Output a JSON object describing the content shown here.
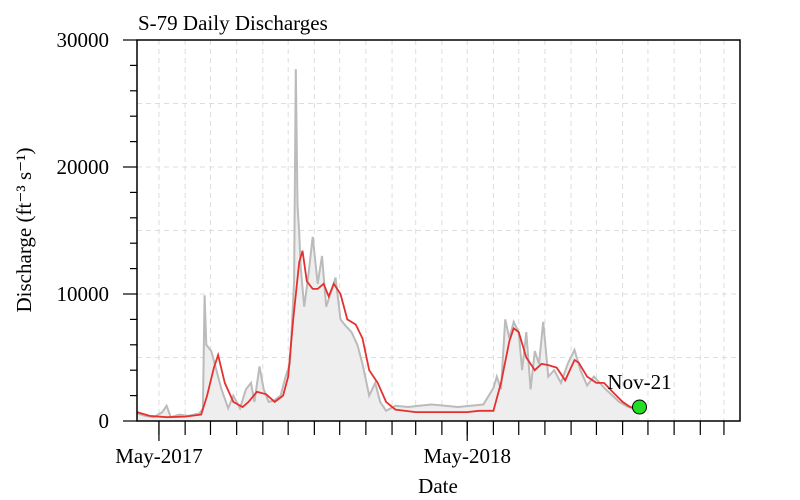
{
  "chart_data": {
    "type": "area",
    "title": "S-79 Daily Discharges",
    "xlabel": "Date",
    "ylabel": "Discharge (ft⁻³ s⁻¹)",
    "x_tick_labels": [
      {
        "date": "2017-05-01",
        "label": "May-2017"
      },
      {
        "date": "2018-05-01",
        "label": "May-2018"
      }
    ],
    "xlim": [
      "2017-04-05",
      "2019-03-20"
    ],
    "ylim": [
      0,
      30000
    ],
    "yticks": [
      0,
      10000,
      20000,
      30000
    ],
    "grid": true,
    "annotation": {
      "date": "2018-11-21",
      "value": 1100,
      "label": "Nov-21",
      "color": "#22dd22"
    },
    "series": [
      {
        "style": "gray area",
        "color": "#bbbbbb",
        "fill": "#eeeeee",
        "points": [
          [
            "2017-04-05",
            600
          ],
          [
            "2017-04-15",
            400
          ],
          [
            "2017-04-25",
            300
          ],
          [
            "2017-05-05",
            700
          ],
          [
            "2017-05-10",
            1200
          ],
          [
            "2017-05-15",
            300
          ],
          [
            "2017-05-25",
            500
          ],
          [
            "2017-06-05",
            400
          ],
          [
            "2017-06-18",
            600
          ],
          [
            "2017-06-22",
            1000
          ],
          [
            "2017-06-24",
            9900
          ],
          [
            "2017-06-26",
            6000
          ],
          [
            "2017-07-02",
            5500
          ],
          [
            "2017-07-08",
            4000
          ],
          [
            "2017-07-14",
            2500
          ],
          [
            "2017-07-22",
            1000
          ],
          [
            "2017-07-28",
            2000
          ],
          [
            "2017-08-05",
            1000
          ],
          [
            "2017-08-12",
            2500
          ],
          [
            "2017-08-18",
            3000
          ],
          [
            "2017-08-22",
            1500
          ],
          [
            "2017-08-28",
            4300
          ],
          [
            "2017-09-02",
            2500
          ],
          [
            "2017-09-08",
            1500
          ],
          [
            "2017-09-14",
            1600
          ],
          [
            "2017-09-22",
            2000
          ],
          [
            "2017-09-28",
            3500
          ],
          [
            "2017-10-03",
            4500
          ],
          [
            "2017-10-08",
            11000
          ],
          [
            "2017-10-10",
            27700
          ],
          [
            "2017-10-12",
            17000
          ],
          [
            "2017-10-14",
            14800
          ],
          [
            "2017-10-16",
            12000
          ],
          [
            "2017-10-20",
            9000
          ],
          [
            "2017-10-25",
            11500
          ],
          [
            "2017-10-30",
            14500
          ],
          [
            "2017-11-05",
            10800
          ],
          [
            "2017-11-10",
            13000
          ],
          [
            "2017-11-15",
            9000
          ],
          [
            "2017-11-20",
            10000
          ],
          [
            "2017-11-26",
            11300
          ],
          [
            "2017-12-02",
            8000
          ],
          [
            "2017-12-08",
            7500
          ],
          [
            "2017-12-15",
            7000
          ],
          [
            "2017-12-22",
            6000
          ],
          [
            "2017-12-28",
            4500
          ],
          [
            "2018-01-05",
            2000
          ],
          [
            "2018-01-12",
            3000
          ],
          [
            "2018-01-18",
            1500
          ],
          [
            "2018-01-25",
            800
          ],
          [
            "2018-02-05",
            1200
          ],
          [
            "2018-02-20",
            1100
          ],
          [
            "2018-03-05",
            1200
          ],
          [
            "2018-03-20",
            1300
          ],
          [
            "2018-04-05",
            1200
          ],
          [
            "2018-04-20",
            1100
          ],
          [
            "2018-05-05",
            1200
          ],
          [
            "2018-05-20",
            1300
          ],
          [
            "2018-06-01",
            2600
          ],
          [
            "2018-06-05",
            3500
          ],
          [
            "2018-06-10",
            2500
          ],
          [
            "2018-06-15",
            8000
          ],
          [
            "2018-06-20",
            6500
          ],
          [
            "2018-06-25",
            7800
          ],
          [
            "2018-07-01",
            7000
          ],
          [
            "2018-07-05",
            4000
          ],
          [
            "2018-07-10",
            7000
          ],
          [
            "2018-07-15",
            2500
          ],
          [
            "2018-07-20",
            5500
          ],
          [
            "2018-07-25",
            4500
          ],
          [
            "2018-07-30",
            7800
          ],
          [
            "2018-08-05",
            3500
          ],
          [
            "2018-08-12",
            4000
          ],
          [
            "2018-08-20",
            3000
          ],
          [
            "2018-08-28",
            4500
          ],
          [
            "2018-09-05",
            5600
          ],
          [
            "2018-09-12",
            4000
          ],
          [
            "2018-09-20",
            2800
          ],
          [
            "2018-09-28",
            3500
          ],
          [
            "2018-10-05",
            3000
          ],
          [
            "2018-10-12",
            2500
          ],
          [
            "2018-10-20",
            2000
          ],
          [
            "2018-10-28",
            1500
          ],
          [
            "2018-11-05",
            1200
          ],
          [
            "2018-11-12",
            1000
          ],
          [
            "2018-11-21",
            1100
          ]
        ]
      },
      {
        "style": "red line",
        "color": "#e53030",
        "points": [
          [
            "2017-04-05",
            700
          ],
          [
            "2017-04-20",
            400
          ],
          [
            "2017-05-10",
            300
          ],
          [
            "2017-06-01",
            350
          ],
          [
            "2017-06-20",
            500
          ],
          [
            "2017-06-27",
            2000
          ],
          [
            "2017-07-05",
            4200
          ],
          [
            "2017-07-10",
            5200
          ],
          [
            "2017-07-18",
            3000
          ],
          [
            "2017-07-28",
            1500
          ],
          [
            "2017-08-08",
            1100
          ],
          [
            "2017-08-15",
            1500
          ],
          [
            "2017-08-25",
            2300
          ],
          [
            "2017-09-05",
            2100
          ],
          [
            "2017-09-15",
            1500
          ],
          [
            "2017-09-25",
            2000
          ],
          [
            "2017-10-01",
            3500
          ],
          [
            "2017-10-07",
            8000
          ],
          [
            "2017-10-14",
            12500
          ],
          [
            "2017-10-18",
            13400
          ],
          [
            "2017-10-23",
            11000
          ],
          [
            "2017-10-30",
            10400
          ],
          [
            "2017-11-05",
            10400
          ],
          [
            "2017-11-12",
            10800
          ],
          [
            "2017-11-18",
            9800
          ],
          [
            "2017-11-24",
            10800
          ],
          [
            "2017-12-02",
            10000
          ],
          [
            "2017-12-10",
            8000
          ],
          [
            "2017-12-20",
            7600
          ],
          [
            "2017-12-28",
            6500
          ],
          [
            "2018-01-05",
            4000
          ],
          [
            "2018-01-15",
            3000
          ],
          [
            "2018-01-25",
            1500
          ],
          [
            "2018-02-05",
            900
          ],
          [
            "2018-03-01",
            700
          ],
          [
            "2018-04-01",
            700
          ],
          [
            "2018-05-01",
            700
          ],
          [
            "2018-05-15",
            800
          ],
          [
            "2018-06-01",
            800
          ],
          [
            "2018-06-10",
            3000
          ],
          [
            "2018-06-20",
            6300
          ],
          [
            "2018-06-25",
            7300
          ],
          [
            "2018-07-01",
            7000
          ],
          [
            "2018-07-10",
            5000
          ],
          [
            "2018-07-20",
            4000
          ],
          [
            "2018-07-28",
            4500
          ],
          [
            "2018-08-05",
            4400
          ],
          [
            "2018-08-15",
            4200
          ],
          [
            "2018-08-25",
            3200
          ],
          [
            "2018-09-05",
            4800
          ],
          [
            "2018-09-10",
            4600
          ],
          [
            "2018-09-20",
            3500
          ],
          [
            "2018-10-01",
            3000
          ],
          [
            "2018-10-10",
            3000
          ],
          [
            "2018-10-20",
            2300
          ],
          [
            "2018-11-01",
            1500
          ],
          [
            "2018-11-10",
            1100
          ],
          [
            "2018-11-21",
            1000
          ]
        ]
      }
    ]
  }
}
